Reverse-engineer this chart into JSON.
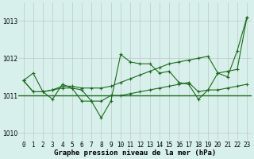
{
  "x": [
    0,
    1,
    2,
    3,
    4,
    5,
    6,
    7,
    8,
    9,
    10,
    11,
    12,
    13,
    14,
    15,
    16,
    17,
    18,
    19,
    20,
    21,
    22,
    23
  ],
  "series_zigzag": [
    1011.4,
    1011.6,
    1011.1,
    1010.9,
    1011.3,
    1011.2,
    1010.85,
    1010.85,
    1010.4,
    1010.85,
    1012.1,
    1011.9,
    1011.85,
    1011.85,
    1011.6,
    1011.65,
    1011.35,
    1011.3,
    1010.9,
    1011.15,
    1011.6,
    1011.5,
    1012.2,
    1013.1
  ],
  "series_flat": [
    1011.4,
    1011.1,
    1011.1,
    1011.15,
    1011.2,
    1011.2,
    1011.15,
    1010.85,
    1010.85,
    1011.0,
    1011.0,
    1011.05,
    1011.1,
    1011.15,
    1011.2,
    1011.25,
    1011.3,
    1011.35,
    1011.1,
    1011.15,
    1011.15,
    1011.2,
    1011.25,
    1011.3
  ],
  "series_rising": [
    1011.4,
    1011.1,
    1011.1,
    1011.15,
    1011.25,
    1011.25,
    1011.2,
    1011.2,
    1011.2,
    1011.25,
    1011.35,
    1011.45,
    1011.55,
    1011.65,
    1011.75,
    1011.85,
    1011.9,
    1011.95,
    1012.0,
    1012.05,
    1011.6,
    1011.65,
    1011.7,
    1013.1
  ],
  "hline_y": 1011.0,
  "line_color": "#1a6b1a",
  "bg_color": "#d8f0ec",
  "grid_color": "#bbbbbb",
  "xlabel": "Graphe pression niveau de la mer (hPa)",
  "ylim": [
    1009.8,
    1013.5
  ],
  "yticks": [
    1010,
    1011,
    1012,
    1013
  ],
  "xticks": [
    0,
    1,
    2,
    3,
    4,
    5,
    6,
    7,
    8,
    9,
    10,
    11,
    12,
    13,
    14,
    15,
    16,
    17,
    18,
    19,
    20,
    21,
    22,
    23
  ],
  "xlabel_fontsize": 6.5,
  "tick_fontsize": 5.5
}
